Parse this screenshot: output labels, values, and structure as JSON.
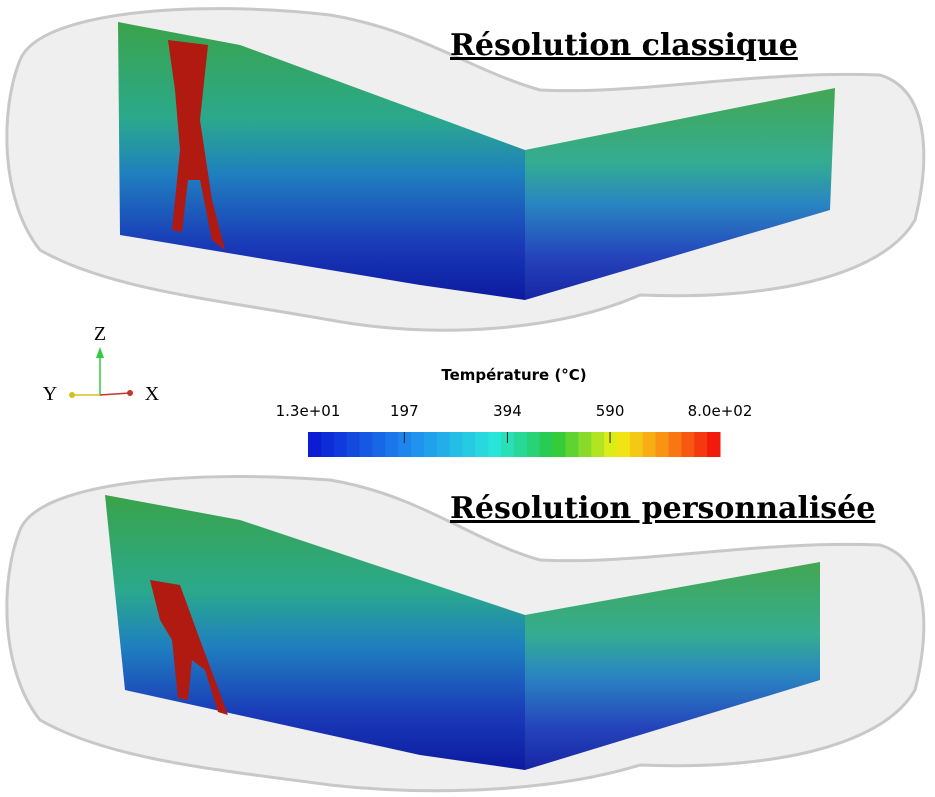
{
  "panels": [
    {
      "title": "Résolution classique"
    },
    {
      "title": "Résolution personnalisée"
    }
  ],
  "colorbar": {
    "title": "Température (°C)",
    "range": [
      13,
      800
    ],
    "ticks": [
      {
        "value": 13,
        "label": "1.3e+01"
      },
      197,
      394,
      590,
      {
        "value": 800,
        "label": "8.0e+02"
      }
    ]
  },
  "axes_triad": {
    "z": "Z",
    "y": "Y",
    "x": "X"
  }
}
